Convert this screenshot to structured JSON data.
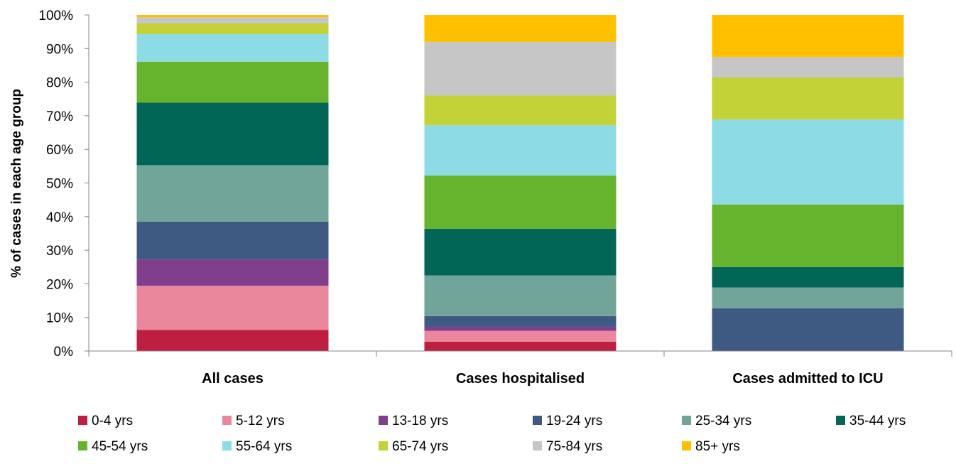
{
  "chart_data": {
    "type": "bar",
    "stacked": true,
    "percent": true,
    "title": "",
    "xlabel": "",
    "ylabel": "% of cases in each age group",
    "ylim": [
      0,
      100
    ],
    "yticks": [
      "0%",
      "10%",
      "20%",
      "30%",
      "40%",
      "50%",
      "60%",
      "70%",
      "80%",
      "90%",
      "100%"
    ],
    "grid": false,
    "legend_position": "bottom",
    "categories": [
      "All cases",
      "Cases hospitalised",
      "Cases admitted to ICU"
    ],
    "series": [
      {
        "name": "0-4 yrs",
        "color": "#be1e40",
        "values": [
          6.3,
          2.8,
          0
        ]
      },
      {
        "name": "5-12 yrs",
        "color": "#ea879c",
        "values": [
          13.1,
          3.2,
          0
        ]
      },
      {
        "name": "13-18 yrs",
        "color": "#7f3f8c",
        "values": [
          7.8,
          1.2,
          0
        ]
      },
      {
        "name": "19-24 yrs",
        "color": "#3e5a82",
        "values": [
          11.3,
          3.2,
          12.7
        ]
      },
      {
        "name": "25-34 yrs",
        "color": "#71a59a",
        "values": [
          16.8,
          12.1,
          6.2
        ]
      },
      {
        "name": "35-44 yrs",
        "color": "#016656",
        "values": [
          18.6,
          13.9,
          6.1
        ]
      },
      {
        "name": "45-54 yrs",
        "color": "#66b32e",
        "values": [
          12.2,
          15.8,
          18.6
        ]
      },
      {
        "name": "55-64 yrs",
        "color": "#8cdbe5",
        "values": [
          8.2,
          15.0,
          25.3
        ]
      },
      {
        "name": "65-74 yrs",
        "color": "#c2d237",
        "values": [
          3.2,
          8.8,
          12.5
        ]
      },
      {
        "name": "75-84 yrs",
        "color": "#c6c6c6",
        "values": [
          1.8,
          16.0,
          6.1
        ]
      },
      {
        "name": "85+ yrs",
        "color": "#ffc000",
        "values": [
          0.7,
          8.0,
          12.5
        ]
      }
    ]
  }
}
